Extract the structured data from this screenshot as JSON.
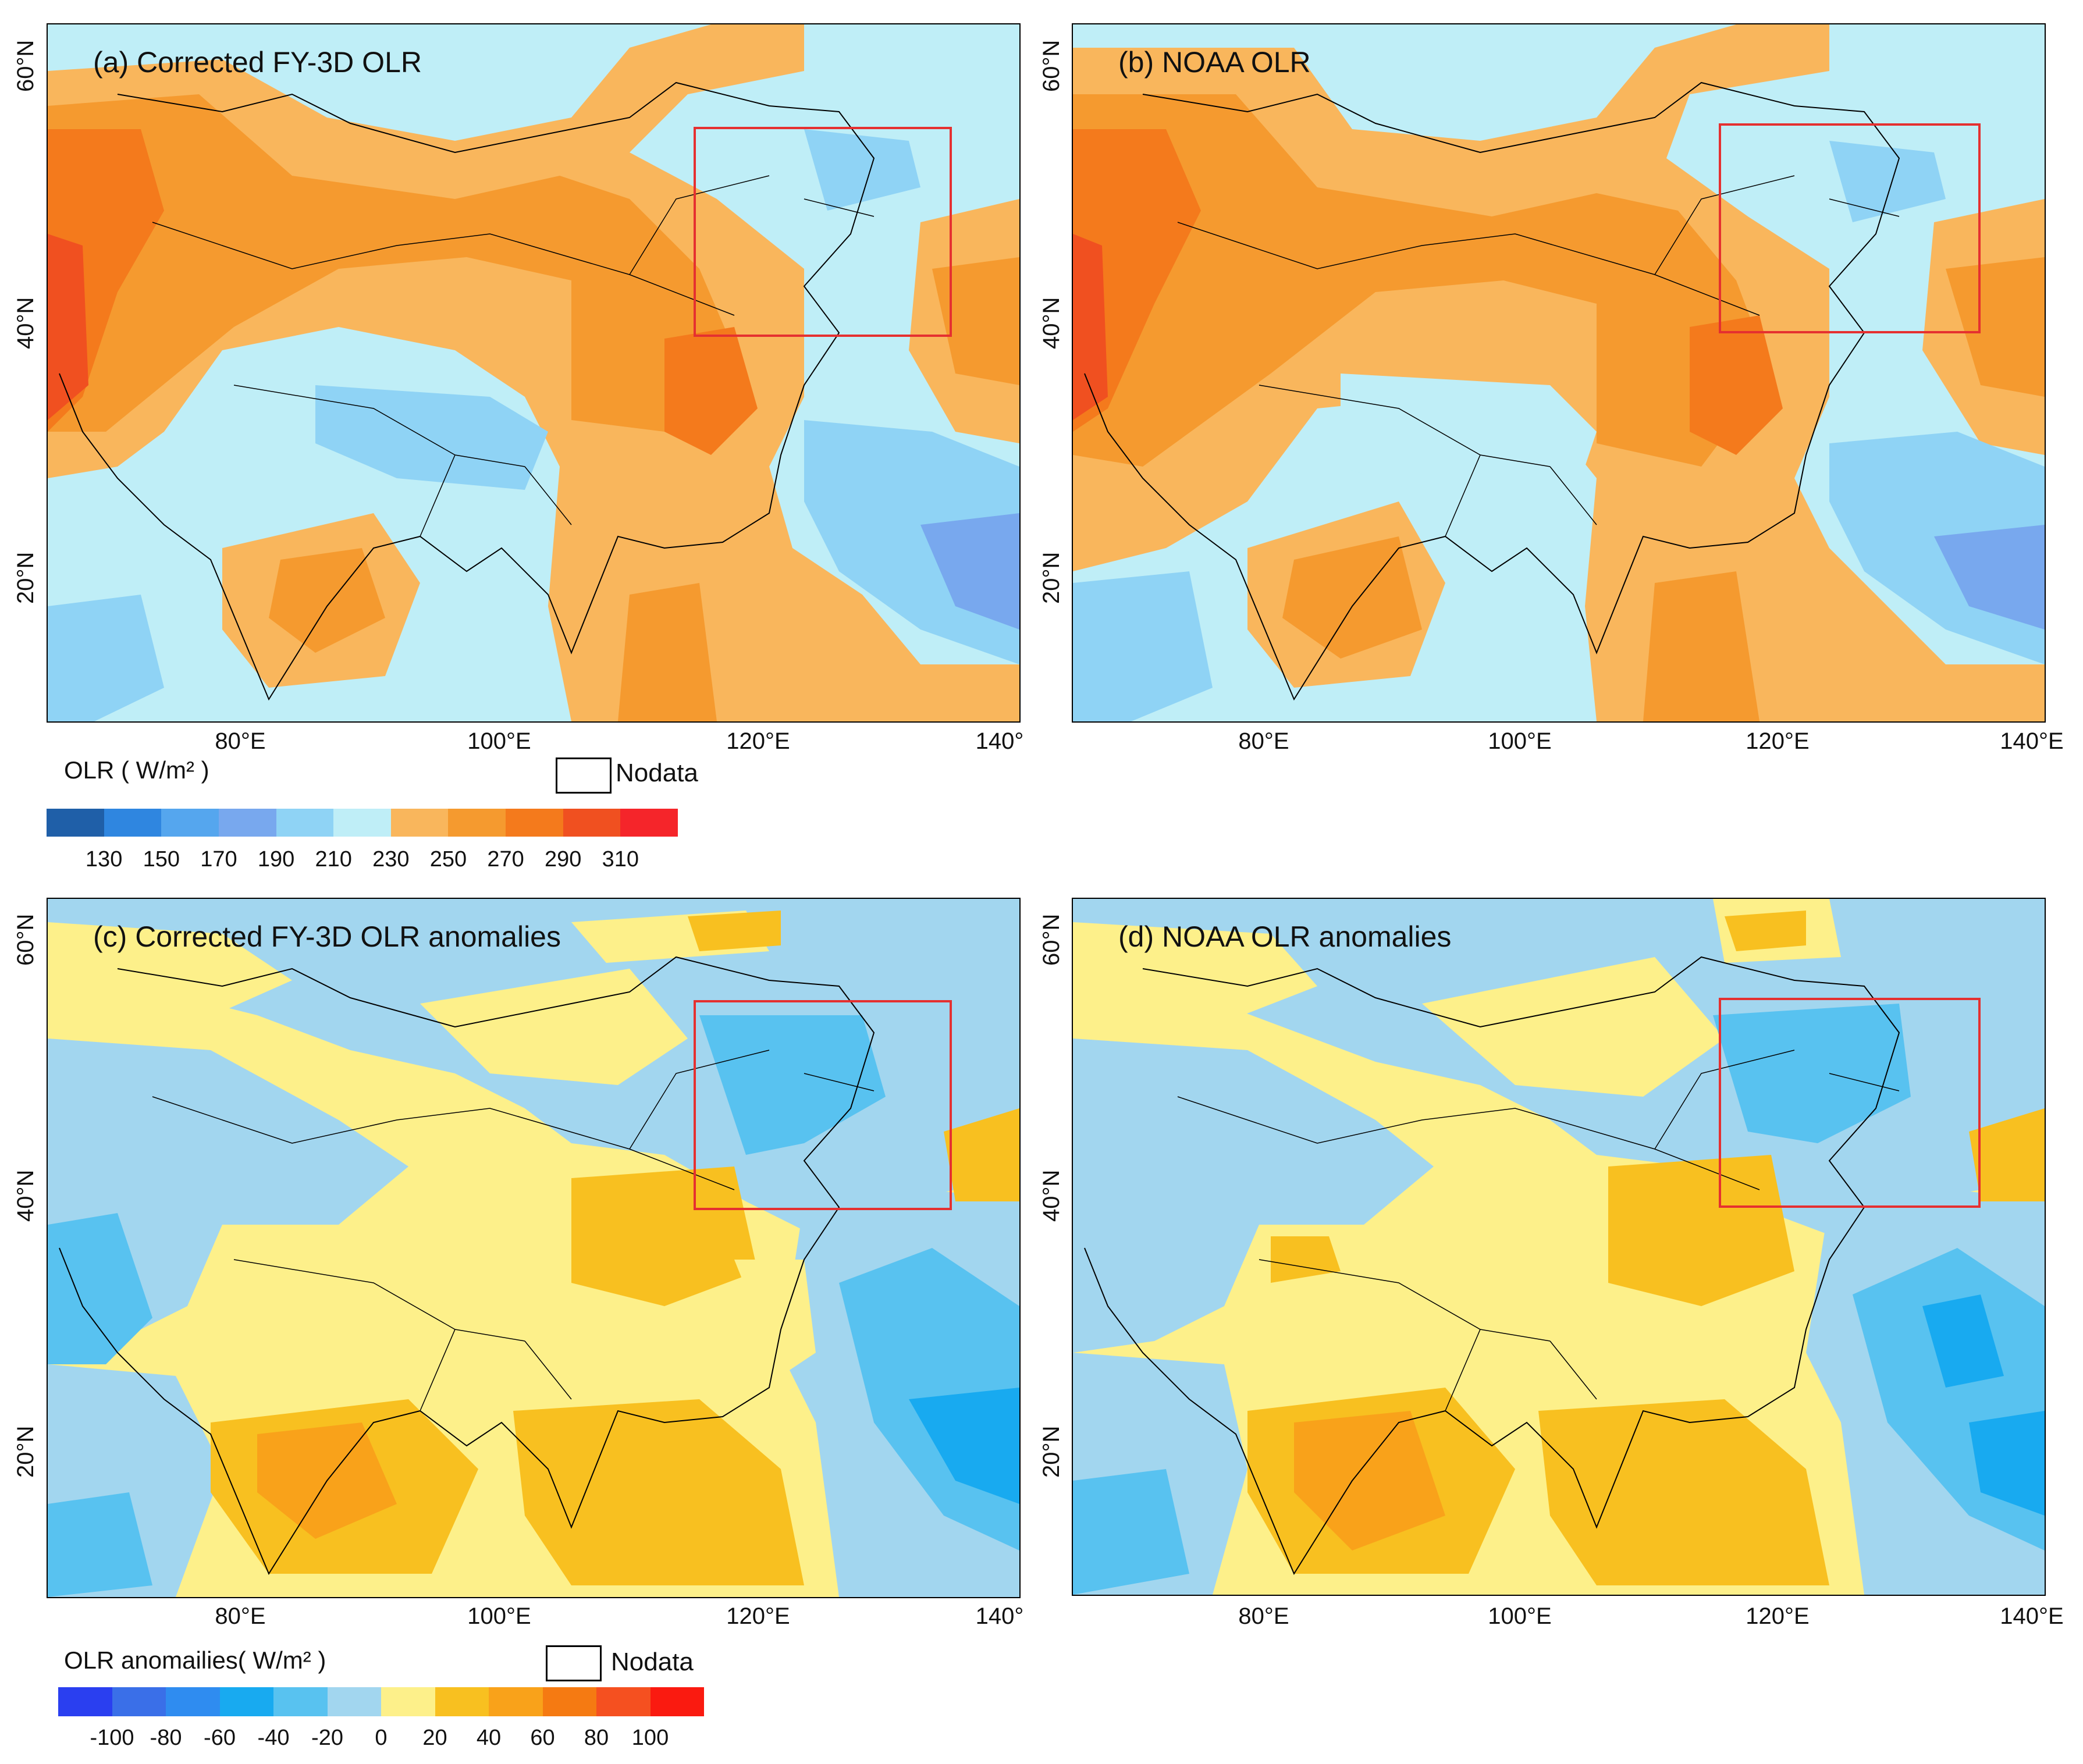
{
  "panels": [
    {
      "title": "(a) Corrected FY-3D OLR",
      "type": "olr"
    },
    {
      "title": "(b) NOAA OLR",
      "type": "olr"
    },
    {
      "title": "(c) Corrected FY-3D OLR anomalies",
      "type": "anom"
    },
    {
      "title": "(d) NOAA OLR anomalies",
      "type": "anom"
    }
  ],
  "axes": {
    "x_ticks_left": [
      "80°E",
      "100°E",
      "120°E",
      "140°"
    ],
    "x_ticks_right": [
      "80°E",
      "100°E",
      "120°E",
      "140°E"
    ],
    "y_ticks": [
      "60°N",
      "40°N",
      "20°N"
    ]
  },
  "legend_olr": {
    "title": "OLR ( W/m² )",
    "nodata": "Nodata",
    "colors": [
      "#1f5fa8",
      "#2f86e0",
      "#55a6ee",
      "#78a8ee",
      "#8fd3f5",
      "#bfeef7",
      "#f9b65c",
      "#f59a2f",
      "#f47a1c",
      "#f05020",
      "#f5252a"
    ],
    "labels": [
      "130",
      "150",
      "170",
      "190",
      "210",
      "230",
      "250",
      "270",
      "290",
      "310"
    ]
  },
  "legend_anom": {
    "title": "OLR anomailies( W/m² )",
    "nodata": "Nodata",
    "colors": [
      "#2a3ff0",
      "#3a6fe8",
      "#2f8cf0",
      "#18aaf0",
      "#58c2f0",
      "#a2d6ef",
      "#fdf08a",
      "#f8c020",
      "#f9a21a",
      "#f57a12",
      "#f55020",
      "#fa1a10"
    ],
    "labels": [
      "-100",
      "-80",
      "-60",
      "-40",
      "-20",
      "0",
      "20",
      "40",
      "60",
      "80",
      "100"
    ]
  },
  "colors": {
    "olr_cold": "#bfeef7",
    "olr_mid": "#f9b65c",
    "olr_warm": "#f59a2f",
    "olr_hot": "#f47a1c",
    "olr_hottest": "#f05020",
    "olr_blue": "#8fd3f5",
    "olr_deepblue": "#78a8ee",
    "anom_pos": "#fdf08a",
    "anom_pos2": "#f8c020",
    "anom_pos3": "#f9a21a",
    "anom_neg": "#a2d6ef",
    "anom_neg2": "#58c2f0",
    "anom_neg3": "#18aaf0",
    "box": "#e53030"
  }
}
